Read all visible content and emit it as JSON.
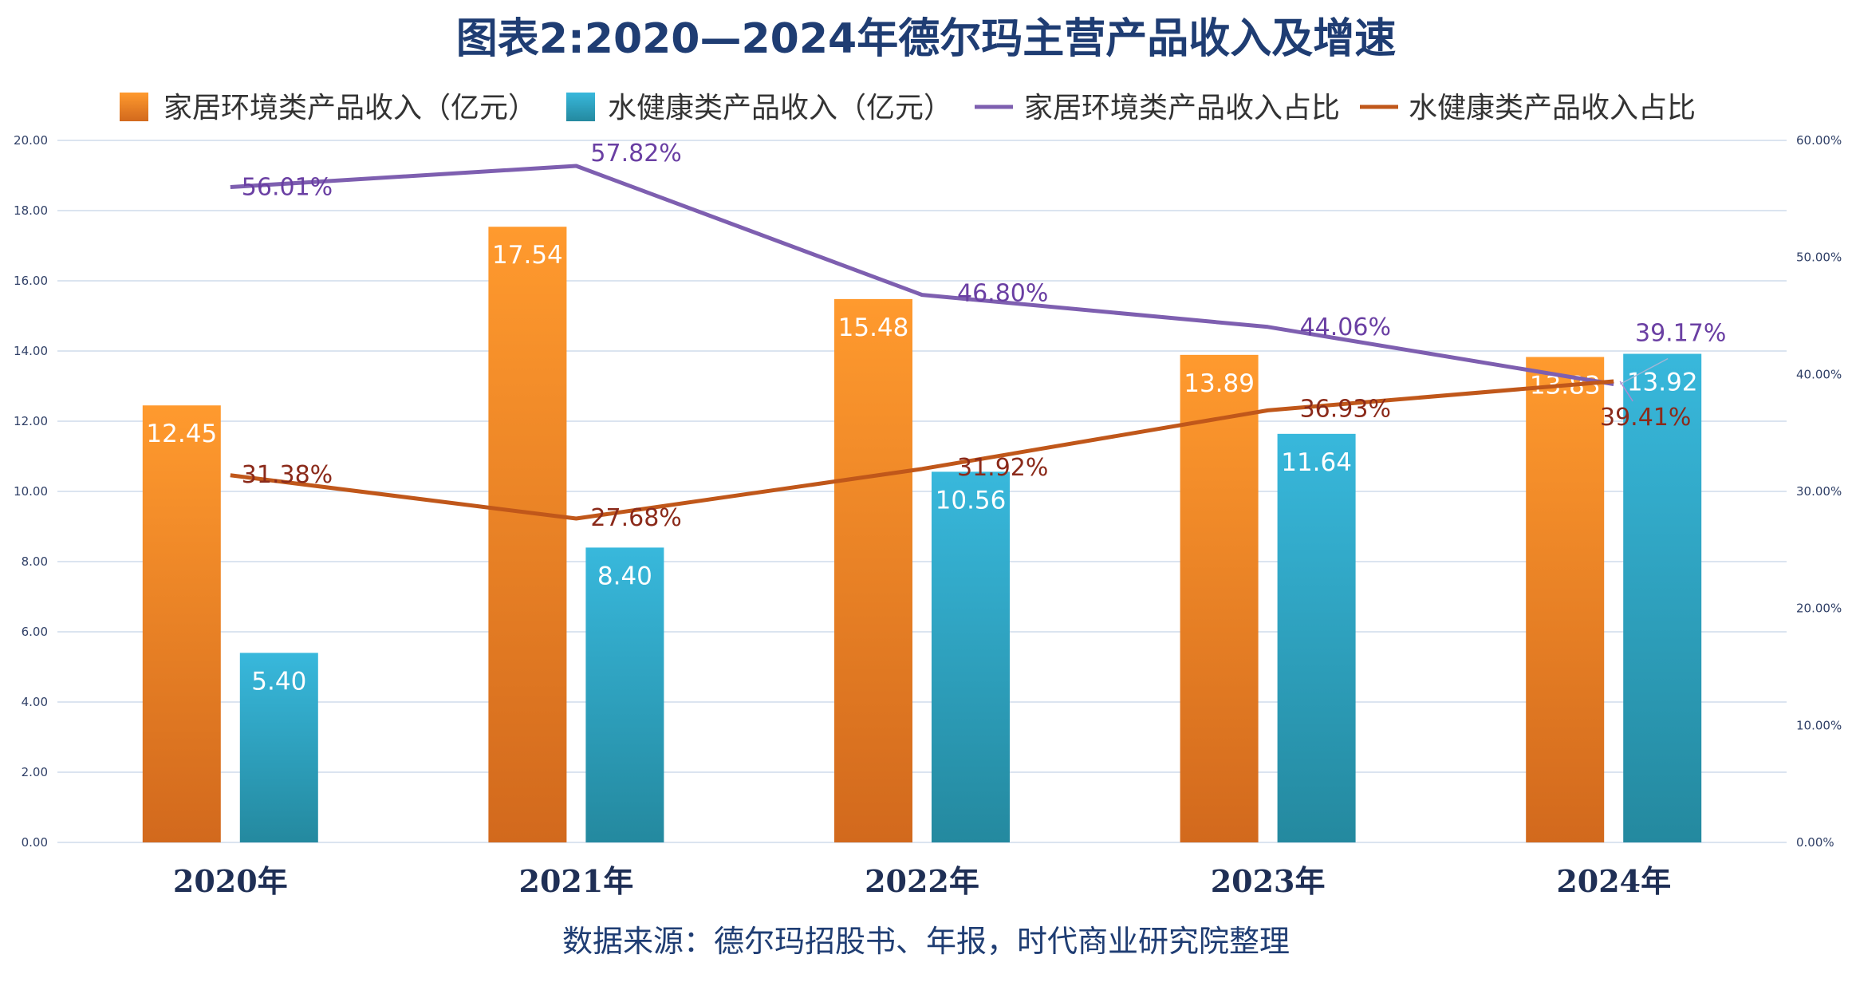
{
  "chart_data": {
    "type": "bar",
    "title": "图表2:2020—2024年德尔玛主营产品收入及增速",
    "source": "数据来源：德尔玛招股书、年报，时代商业研究院整理",
    "categories": [
      "2020年",
      "2021年",
      "2022年",
      "2023年",
      "2024年"
    ],
    "y_left": {
      "min": 0,
      "max": 20,
      "step": 2,
      "ticks": [
        "0.00",
        "2.00",
        "4.00",
        "6.00",
        "8.00",
        "10.00",
        "12.00",
        "14.00",
        "16.00",
        "18.00",
        "20.00"
      ]
    },
    "y_right": {
      "min": 0,
      "max": 60,
      "step": 10,
      "ticks": [
        "0.00%",
        "10.00%",
        "20.00%",
        "30.00%",
        "40.00%",
        "50.00%",
        "60.00%"
      ]
    },
    "legend_position": "top",
    "grid": true,
    "series": [
      {
        "name": "家居环境类产品收入（亿元）",
        "kind": "bar",
        "axis": "left",
        "color": "#f08a24",
        "values": [
          12.45,
          17.54,
          15.48,
          13.89,
          13.83
        ],
        "labels": [
          "12.45",
          "17.54",
          "15.48",
          "13.89",
          "13.83"
        ]
      },
      {
        "name": "水健康类产品收入（亿元）",
        "kind": "bar",
        "axis": "left",
        "color": "#2fb0d3",
        "values": [
          5.4,
          8.4,
          10.56,
          11.64,
          13.92
        ],
        "labels": [
          "5.40",
          "8.40",
          "10.56",
          "11.64",
          "13.92"
        ]
      },
      {
        "name": "家居环境类产品收入占比",
        "kind": "line",
        "axis": "right",
        "color": "#7e5fb0",
        "label_color": "#6a3fa3",
        "values": [
          56.01,
          57.82,
          46.8,
          44.06,
          39.17
        ],
        "labels": [
          "56.01%",
          "57.82%",
          "46.80%",
          "44.06%",
          "39.17%"
        ]
      },
      {
        "name": "水健康类产品收入占比",
        "kind": "line",
        "axis": "right",
        "color": "#c0571a",
        "label_color": "#8b2a1a",
        "values": [
          31.38,
          27.68,
          31.92,
          36.93,
          39.41
        ],
        "labels": [
          "31.38%",
          "27.68%",
          "31.92%",
          "36.93%",
          "39.41%"
        ]
      }
    ]
  }
}
